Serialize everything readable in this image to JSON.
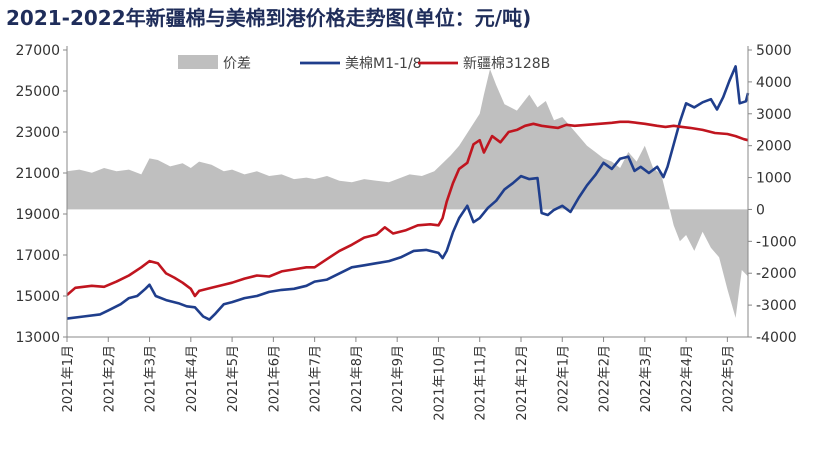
{
  "chart_data": {
    "type": "line",
    "title": "2021-2022年新疆棉与美棉到港价格走势图(单位：元/吨)",
    "left_axis": {
      "min": 13000,
      "max": 27000,
      "ticks": [
        "27000",
        "25000",
        "23000",
        "21000",
        "19000",
        "17000",
        "15000",
        "13000"
      ]
    },
    "right_axis": {
      "min": -4000,
      "max": 5000,
      "ticks": [
        "5000",
        "4000",
        "3000",
        "2000",
        "1000",
        "0",
        "-1000",
        "-2000",
        "-3000",
        "-4000"
      ]
    },
    "x_range": [
      0,
      16.5
    ],
    "categories": [
      "2021年1月",
      "2021年2月",
      "2021年3月",
      "2021年4月",
      "2021年5月",
      "2021年6月",
      "2021年7月",
      "2021年8月",
      "2021年9月",
      "2021年10月",
      "2021年11月",
      "2021年12月",
      "2022年1月",
      "2022年2月",
      "2022年3月",
      "2022年4月",
      "2022年5月"
    ],
    "legend": {
      "placement": "top-center"
    },
    "series": [
      {
        "name": "价差",
        "kind": "area",
        "axis": "right",
        "color": "#bfbfbf",
        "points": [
          [
            0,
            1200
          ],
          [
            0.3,
            1250
          ],
          [
            0.6,
            1150
          ],
          [
            0.9,
            1300
          ],
          [
            1.2,
            1200
          ],
          [
            1.5,
            1250
          ],
          [
            1.8,
            1100
          ],
          [
            2,
            1600
          ],
          [
            2.2,
            1550
          ],
          [
            2.5,
            1350
          ],
          [
            2.8,
            1450
          ],
          [
            3,
            1300
          ],
          [
            3.2,
            1500
          ],
          [
            3.5,
            1400
          ],
          [
            3.8,
            1200
          ],
          [
            4,
            1250
          ],
          [
            4.3,
            1100
          ],
          [
            4.6,
            1200
          ],
          [
            4.9,
            1050
          ],
          [
            5.2,
            1100
          ],
          [
            5.5,
            950
          ],
          [
            5.8,
            1000
          ],
          [
            6,
            950
          ],
          [
            6.3,
            1050
          ],
          [
            6.6,
            900
          ],
          [
            6.9,
            850
          ],
          [
            7.2,
            950
          ],
          [
            7.5,
            900
          ],
          [
            7.8,
            850
          ],
          [
            8,
            950
          ],
          [
            8.3,
            1100
          ],
          [
            8.6,
            1050
          ],
          [
            8.9,
            1200
          ],
          [
            9.1,
            1450
          ],
          [
            9.3,
            1700
          ],
          [
            9.5,
            2000
          ],
          [
            9.8,
            2600
          ],
          [
            10,
            3000
          ],
          [
            10.1,
            3600
          ],
          [
            10.25,
            4400
          ],
          [
            10.4,
            3900
          ],
          [
            10.6,
            3300
          ],
          [
            10.9,
            3100
          ],
          [
            11.2,
            3600
          ],
          [
            11.4,
            3200
          ],
          [
            11.6,
            3400
          ],
          [
            11.8,
            2800
          ],
          [
            12,
            2900
          ],
          [
            12.2,
            2600
          ],
          [
            12.4,
            2300
          ],
          [
            12.6,
            2000
          ],
          [
            12.8,
            1800
          ],
          [
            13,
            1600
          ],
          [
            13.2,
            1500
          ],
          [
            13.4,
            1300
          ],
          [
            13.6,
            1800
          ],
          [
            13.8,
            1500
          ],
          [
            14,
            2000
          ],
          [
            14.2,
            1300
          ],
          [
            14.4,
            1100
          ],
          [
            14.55,
            300
          ],
          [
            14.7,
            -500
          ],
          [
            14.85,
            -1000
          ],
          [
            15,
            -800
          ],
          [
            15.2,
            -1300
          ],
          [
            15.4,
            -700
          ],
          [
            15.6,
            -1200
          ],
          [
            15.8,
            -1500
          ],
          [
            16,
            -2500
          ],
          [
            16.2,
            -3400
          ],
          [
            16.35,
            -1900
          ],
          [
            16.5,
            -2100
          ]
        ]
      },
      {
        "name": "美棉M1-1/8",
        "kind": "line",
        "axis": "left",
        "color": "#1f3e8c",
        "points": [
          [
            0,
            13900
          ],
          [
            0.4,
            14000
          ],
          [
            0.8,
            14100
          ],
          [
            1,
            14300
          ],
          [
            1.3,
            14600
          ],
          [
            1.5,
            14900
          ],
          [
            1.7,
            15000
          ],
          [
            1.9,
            15350
          ],
          [
            2,
            15550
          ],
          [
            2.15,
            15000
          ],
          [
            2.4,
            14800
          ],
          [
            2.7,
            14650
          ],
          [
            2.9,
            14500
          ],
          [
            3.1,
            14450
          ],
          [
            3.3,
            14000
          ],
          [
            3.45,
            13850
          ],
          [
            3.6,
            14150
          ],
          [
            3.8,
            14600
          ],
          [
            4,
            14700
          ],
          [
            4.3,
            14900
          ],
          [
            4.6,
            15000
          ],
          [
            4.9,
            15200
          ],
          [
            5.2,
            15300
          ],
          [
            5.5,
            15350
          ],
          [
            5.8,
            15500
          ],
          [
            6,
            15700
          ],
          [
            6.3,
            15800
          ],
          [
            6.6,
            16100
          ],
          [
            6.9,
            16400
          ],
          [
            7.2,
            16500
          ],
          [
            7.5,
            16600
          ],
          [
            7.8,
            16700
          ],
          [
            8.1,
            16900
          ],
          [
            8.4,
            17200
          ],
          [
            8.7,
            17250
          ],
          [
            9,
            17100
          ],
          [
            9.1,
            16850
          ],
          [
            9.2,
            17200
          ],
          [
            9.35,
            18100
          ],
          [
            9.5,
            18800
          ],
          [
            9.7,
            19400
          ],
          [
            9.85,
            18600
          ],
          [
            10,
            18800
          ],
          [
            10.2,
            19300
          ],
          [
            10.4,
            19650
          ],
          [
            10.6,
            20200
          ],
          [
            10.8,
            20500
          ],
          [
            11,
            20850
          ],
          [
            11.2,
            20700
          ],
          [
            11.4,
            20750
          ],
          [
            11.5,
            19050
          ],
          [
            11.65,
            18950
          ],
          [
            11.8,
            19200
          ],
          [
            12,
            19400
          ],
          [
            12.2,
            19100
          ],
          [
            12.4,
            19800
          ],
          [
            12.6,
            20400
          ],
          [
            12.8,
            20900
          ],
          [
            13,
            21500
          ],
          [
            13.2,
            21200
          ],
          [
            13.4,
            21700
          ],
          [
            13.6,
            21800
          ],
          [
            13.75,
            21100
          ],
          [
            13.9,
            21300
          ],
          [
            14.1,
            21000
          ],
          [
            14.3,
            21300
          ],
          [
            14.45,
            20800
          ],
          [
            14.55,
            21300
          ],
          [
            14.7,
            22400
          ],
          [
            14.85,
            23500
          ],
          [
            15,
            24400
          ],
          [
            15.2,
            24200
          ],
          [
            15.4,
            24450
          ],
          [
            15.6,
            24600
          ],
          [
            15.75,
            24100
          ],
          [
            15.9,
            24700
          ],
          [
            16.05,
            25500
          ],
          [
            16.2,
            26200
          ],
          [
            16.3,
            24400
          ],
          [
            16.45,
            24500
          ],
          [
            16.5,
            24900
          ]
        ]
      },
      {
        "name": "新疆棉3128B",
        "kind": "line",
        "axis": "left",
        "color": "#c0151f",
        "points": [
          [
            0,
            15050
          ],
          [
            0.2,
            15400
          ],
          [
            0.6,
            15500
          ],
          [
            0.9,
            15450
          ],
          [
            1.2,
            15700
          ],
          [
            1.5,
            16000
          ],
          [
            1.8,
            16400
          ],
          [
            2,
            16700
          ],
          [
            2.2,
            16600
          ],
          [
            2.4,
            16100
          ],
          [
            2.6,
            15900
          ],
          [
            2.8,
            15650
          ],
          [
            3,
            15350
          ],
          [
            3.1,
            15000
          ],
          [
            3.2,
            15250
          ],
          [
            3.5,
            15400
          ],
          [
            3.8,
            15550
          ],
          [
            4,
            15650
          ],
          [
            4.3,
            15850
          ],
          [
            4.6,
            16000
          ],
          [
            4.9,
            15950
          ],
          [
            5.2,
            16200
          ],
          [
            5.5,
            16300
          ],
          [
            5.8,
            16400
          ],
          [
            6,
            16400
          ],
          [
            6.3,
            16800
          ],
          [
            6.6,
            17200
          ],
          [
            6.9,
            17500
          ],
          [
            7.2,
            17850
          ],
          [
            7.5,
            18000
          ],
          [
            7.7,
            18350
          ],
          [
            7.9,
            18050
          ],
          [
            8.2,
            18200
          ],
          [
            8.5,
            18450
          ],
          [
            8.8,
            18500
          ],
          [
            9,
            18450
          ],
          [
            9.1,
            18800
          ],
          [
            9.2,
            19600
          ],
          [
            9.35,
            20500
          ],
          [
            9.5,
            21200
          ],
          [
            9.7,
            21500
          ],
          [
            9.85,
            22400
          ],
          [
            10,
            22600
          ],
          [
            10.1,
            22000
          ],
          [
            10.3,
            22800
          ],
          [
            10.5,
            22500
          ],
          [
            10.7,
            23000
          ],
          [
            10.9,
            23100
          ],
          [
            11.1,
            23300
          ],
          [
            11.3,
            23400
          ],
          [
            11.5,
            23300
          ],
          [
            11.7,
            23250
          ],
          [
            11.9,
            23200
          ],
          [
            12.1,
            23350
          ],
          [
            12.3,
            23300
          ],
          [
            12.6,
            23350
          ],
          [
            12.9,
            23400
          ],
          [
            13.2,
            23450
          ],
          [
            13.4,
            23500
          ],
          [
            13.6,
            23500
          ],
          [
            13.8,
            23450
          ],
          [
            14,
            23400
          ],
          [
            14.3,
            23300
          ],
          [
            14.5,
            23250
          ],
          [
            14.7,
            23300
          ],
          [
            14.9,
            23250
          ],
          [
            15.1,
            23200
          ],
          [
            15.4,
            23100
          ],
          [
            15.7,
            22950
          ],
          [
            16,
            22900
          ],
          [
            16.2,
            22800
          ],
          [
            16.4,
            22650
          ],
          [
            16.5,
            22600
          ]
        ]
      }
    ]
  }
}
